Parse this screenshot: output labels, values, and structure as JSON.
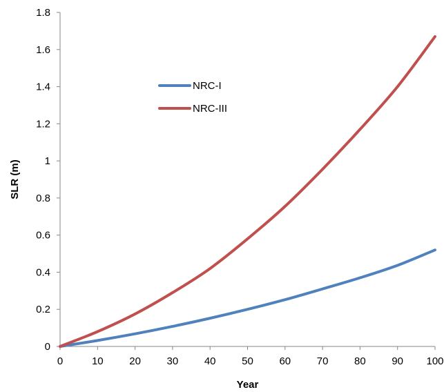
{
  "chart_data": {
    "type": "line",
    "xlabel": "Year",
    "ylabel": "SLR (m)",
    "xlim": [
      0,
      100
    ],
    "ylim": [
      0,
      1.8
    ],
    "xticks": [
      0,
      10,
      20,
      30,
      40,
      50,
      60,
      70,
      80,
      90,
      100
    ],
    "yticks": [
      0,
      0.2,
      0.4,
      0.6,
      0.8,
      1,
      1.2,
      1.4,
      1.6,
      1.8
    ],
    "xtick_labels": [
      "0",
      "10",
      "20",
      "30",
      "40",
      "50",
      "60",
      "70",
      "80",
      "90",
      "100"
    ],
    "ytick_labels": [
      "0",
      "0.2",
      "0.4",
      "0.6",
      "0.8",
      "1",
      "1.2",
      "1.4",
      "1.6",
      "1.8"
    ],
    "grid": false,
    "legend": {
      "placement": "upper-left-inside"
    },
    "series": [
      {
        "name": "NRC-I",
        "color": "#4f81bd",
        "x": [
          0,
          10,
          20,
          30,
          40,
          50,
          60,
          70,
          80,
          90,
          100
        ],
        "y": [
          0,
          0.032,
          0.068,
          0.108,
          0.152,
          0.2,
          0.252,
          0.31,
          0.37,
          0.437,
          0.52
        ]
      },
      {
        "name": "NRC-III",
        "color": "#c0504d",
        "x": [
          0,
          10,
          20,
          30,
          40,
          50,
          60,
          70,
          80,
          90,
          100
        ],
        "y": [
          0,
          0.08,
          0.175,
          0.29,
          0.42,
          0.58,
          0.755,
          0.955,
          1.17,
          1.4,
          1.67
        ]
      }
    ]
  }
}
